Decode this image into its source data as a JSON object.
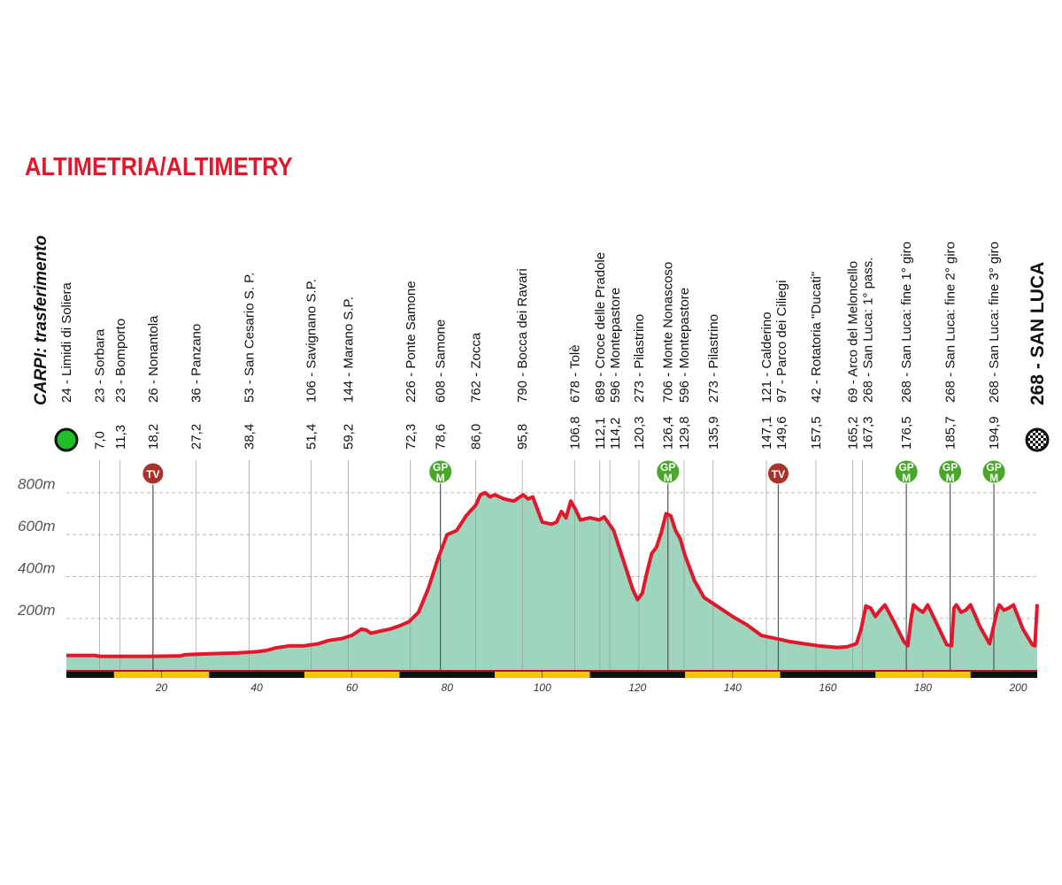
{
  "chart_data": {
    "type": "area",
    "title": "ALTIMETRIA/ALTIMETRY",
    "start_label": "CARPI: trasferimento",
    "first_waypoint": "24 - Limidi di Soliera",
    "finish_label": "268 - SAN LUCA",
    "fill_color": "#9fd4bd",
    "line_color": "#e3172b",
    "grid": true,
    "xlim": [
      0,
      204
    ],
    "xticks": [
      20,
      40,
      60,
      80,
      100,
      120,
      140,
      160,
      180,
      200
    ],
    "ylim": [
      -45,
      900
    ],
    "yticks": [
      {
        "value": 200,
        "label": "200m"
      },
      {
        "value": 400,
        "label": "400m"
      },
      {
        "value": 600,
        "label": "600m"
      },
      {
        "value": 800,
        "label": "800m"
      }
    ],
    "x": [
      0,
      6,
      7,
      18,
      24,
      25,
      30,
      36,
      40,
      42,
      44,
      47,
      50,
      53,
      55,
      58,
      60,
      62,
      63,
      64,
      66,
      68,
      70,
      72,
      74,
      76,
      78,
      80,
      82,
      84,
      86,
      87,
      88,
      89,
      90,
      92,
      94,
      96,
      97,
      98,
      100,
      102,
      103,
      104,
      105,
      106,
      107,
      108,
      110,
      112,
      113,
      115,
      117,
      119,
      120,
      121,
      122,
      123,
      124,
      125,
      126,
      127,
      128,
      129,
      130,
      132,
      134,
      136,
      138,
      140,
      143,
      146,
      148,
      150,
      152,
      155,
      158,
      162,
      164,
      166,
      167,
      168,
      169,
      170,
      171,
      172,
      174,
      176,
      176.8,
      177.5,
      178,
      179,
      180,
      181,
      183,
      185,
      186,
      186.5,
      187,
      188,
      189,
      190,
      192,
      194,
      195.5,
      196,
      197,
      198,
      199,
      201,
      203,
      203.5,
      204
    ],
    "values": [
      24,
      24,
      20,
      20,
      22,
      28,
      32,
      36,
      42,
      48,
      60,
      70,
      70,
      80,
      95,
      105,
      120,
      150,
      145,
      130,
      140,
      150,
      165,
      185,
      230,
      340,
      480,
      600,
      620,
      690,
      740,
      790,
      800,
      780,
      790,
      770,
      760,
      790,
      770,
      780,
      660,
      650,
      660,
      710,
      680,
      760,
      720,
      670,
      680,
      670,
      685,
      620,
      480,
      340,
      290,
      320,
      420,
      510,
      540,
      610,
      700,
      690,
      620,
      580,
      500,
      380,
      300,
      270,
      240,
      210,
      170,
      120,
      110,
      100,
      90,
      80,
      70,
      62,
      65,
      80,
      150,
      260,
      250,
      210,
      240,
      265,
      180,
      90,
      70,
      200,
      265,
      245,
      230,
      265,
      170,
      75,
      70,
      250,
      265,
      230,
      240,
      265,
      160,
      80,
      230,
      265,
      240,
      250,
      265,
      150,
      75,
      70,
      268
    ],
    "waypoints": [
      {
        "name": "23 - Sorbara",
        "km": {
          "value": 7.0,
          "label": "7,0"
        }
      },
      {
        "name": "23 - Bomporto",
        "km": {
          "value": 11.3,
          "label": "11,3"
        }
      },
      {
        "name": "26 - Nonantola",
        "km": {
          "value": 18.2,
          "label": "18,2"
        },
        "marker": [
          "TV"
        ]
      },
      {
        "name": "36 - Panzano",
        "km": {
          "value": 27.2,
          "label": "27,2"
        }
      },
      {
        "name": "53 - San Cesario S. P.",
        "km": {
          "value": 38.4,
          "label": "38,4"
        }
      },
      {
        "name": "106 - Savignano S.P.",
        "km": {
          "value": 51.4,
          "label": "51,4"
        }
      },
      {
        "name": "144 - Marano S.P.",
        "km": {
          "value": 59.2,
          "label": "59,2"
        }
      },
      {
        "name": "226 - Ponte Samone",
        "km": {
          "value": 72.3,
          "label": "72,3"
        }
      },
      {
        "name": "608 - Samone",
        "km": {
          "value": 78.6,
          "label": "78,6"
        },
        "marker": [
          "GP",
          "M"
        ]
      },
      {
        "name": "762 - Zocca",
        "km": {
          "value": 86.0,
          "label": "86,0"
        }
      },
      {
        "name": "790 - Bocca dei Ravari",
        "km": {
          "value": 95.8,
          "label": "95,8"
        }
      },
      {
        "name": "678 - Tolè",
        "km": {
          "value": 106.8,
          "label": "106,8"
        }
      },
      {
        "name": "689 - Croce delle Pradole",
        "km": {
          "value": 112.1,
          "label": "112,1"
        }
      },
      {
        "name": "596 - Montepastore",
        "km": {
          "value": 114.2,
          "label": "114,2"
        }
      },
      {
        "name": "273 - Pilastrino",
        "km": {
          "value": 120.3,
          "label": "120,3"
        }
      },
      {
        "name": "706 - Monte Nonascoso",
        "km": {
          "value": 126.4,
          "label": "126,4"
        },
        "marker": [
          "GP",
          "M"
        ]
      },
      {
        "name": "596 - Montepastore",
        "km": {
          "value": 129.8,
          "label": "129,8"
        }
      },
      {
        "name": "273 - Pilastrino",
        "km": {
          "value": 135.9,
          "label": "135,9"
        }
      },
      {
        "name": "121 - Calderino",
        "km": {
          "value": 147.1,
          "label": "147,1"
        }
      },
      {
        "name": "97 - Parco dei Ciliegi",
        "km": {
          "value": 149.6,
          "label": "149,6"
        },
        "marker": [
          "TV"
        ]
      },
      {
        "name": "42 - Rotatoria \"Ducati\"",
        "km": {
          "value": 157.5,
          "label": "157,5"
        }
      },
      {
        "name": "69 - Arco del Meloncello",
        "km": {
          "value": 165.2,
          "label": "165,2"
        }
      },
      {
        "name": "268 - San Luca: 1° pass.",
        "km": {
          "value": 167.3,
          "label": "167,3"
        }
      },
      {
        "name": "268 - San Luca: fine 1° giro",
        "km": {
          "value": 176.5,
          "label": "176,5"
        },
        "marker": [
          "GP",
          "M"
        ]
      },
      {
        "name": "268 - San Luca: fine 2° giro",
        "km": {
          "value": 185.7,
          "label": "185,7"
        },
        "marker": [
          "GP",
          "M"
        ]
      },
      {
        "name": "268 - San Luca: fine 3° giro",
        "km": {
          "value": 194.9,
          "label": "194,9"
        },
        "marker": [
          "GP",
          "M"
        ]
      }
    ]
  }
}
